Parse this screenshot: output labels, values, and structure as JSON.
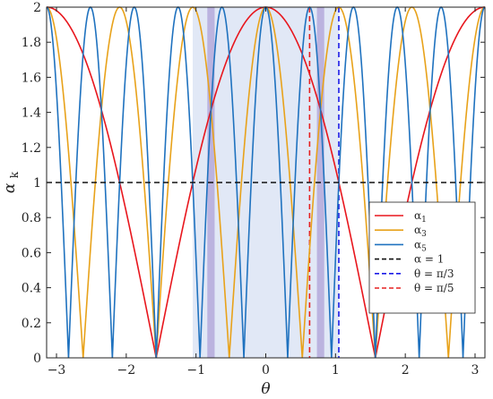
{
  "chart_data": {
    "type": "line",
    "title": "",
    "xlabel": "θ",
    "ylabel": "α",
    "ylabel_subscript": "k",
    "xlim": [
      -3.1416,
      3.1416
    ],
    "ylim": [
      0,
      2
    ],
    "x_ticks": [
      -3,
      -2,
      -1,
      0,
      1,
      2,
      3
    ],
    "y_ticks": [
      0,
      0.2,
      0.4,
      0.6,
      0.8,
      1,
      1.2,
      1.4,
      1.6,
      1.8,
      2
    ],
    "y_tick_labels": [
      "0",
      "0.2",
      "0.4",
      "0.6",
      "0.8",
      "1",
      "1.2",
      "1.4",
      "1.6",
      "1.8",
      "2"
    ],
    "grid": false,
    "legend_position": "bottom-right",
    "series": [
      {
        "name": "α",
        "sub": "1",
        "k": 1,
        "formula": "abs(2*cos(k*theta))",
        "color": "#e8161d",
        "dash": "solid"
      },
      {
        "name": "α",
        "sub": "3",
        "k": 3,
        "formula": "abs(2*cos(k*theta))",
        "color": "#e8a21a",
        "dash": "solid"
      },
      {
        "name": "α",
        "sub": "5",
        "k": 5,
        "formula": "abs(2*cos(k*theta))",
        "color": "#1f72bf",
        "dash": "solid"
      }
    ],
    "reference_lines": [
      {
        "orientation": "horizontal",
        "value": 1,
        "label": "α = 1",
        "color": "#111111",
        "dash": "dashed"
      },
      {
        "orientation": "vertical",
        "value": 1.0472,
        "label": "θ = π/3",
        "color": "#1a1ae6",
        "dash": "dashed"
      },
      {
        "orientation": "vertical",
        "value": 0.6283,
        "label": "θ = π/5",
        "color": "#e62020",
        "dash": "dashed"
      }
    ],
    "shaded_regions": [
      {
        "x0": -1.0472,
        "x1": 1.0472,
        "color": "#c9d6ef",
        "opacity": 0.55
      },
      {
        "x0": -0.8378,
        "x1": -0.733,
        "color": "#a28fd0",
        "opacity": 0.6
      },
      {
        "x0": 0.733,
        "x1": 0.8378,
        "color": "#a28fd0",
        "opacity": 0.6
      }
    ]
  },
  "colors": {
    "axis": "#222222",
    "background": "#ffffff"
  }
}
